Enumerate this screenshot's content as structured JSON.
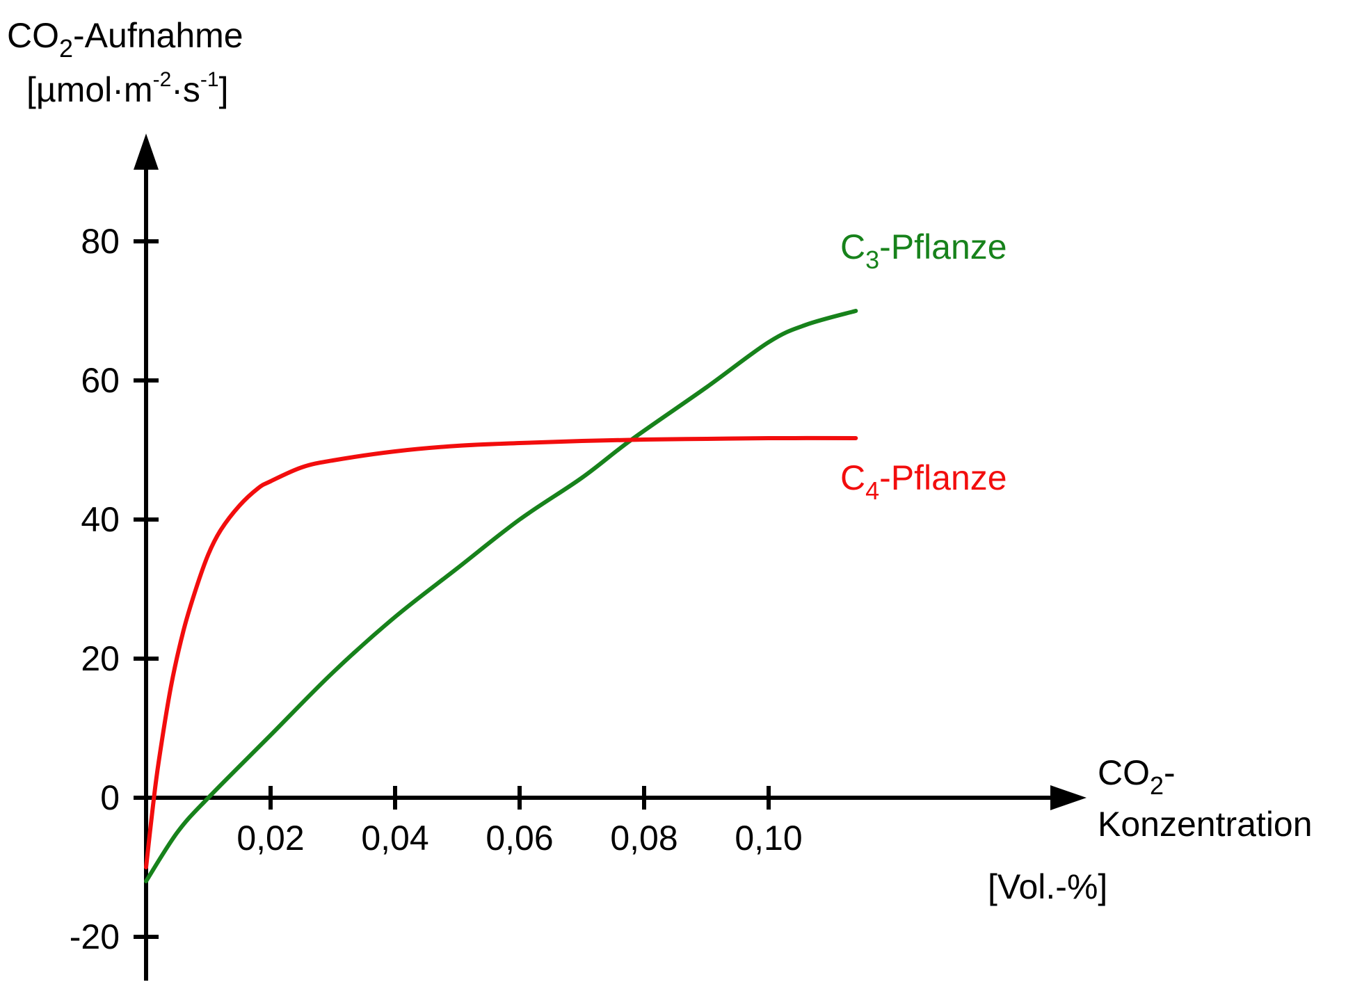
{
  "chart_data": {
    "type": "line",
    "ylabel_line1_main": "CO",
    "ylabel_line1_sub": "2",
    "ylabel_line1_rest": "-Aufnahme",
    "ylabel_line2_a": "[µmol·m",
    "ylabel_line2_sup1": "-2",
    "ylabel_line2_b": "·s",
    "ylabel_line2_sup2": "-1",
    "ylabel_line2_c": "]",
    "xlabel_line1_main": "CO",
    "xlabel_line1_sub": "2",
    "xlabel_line1_rest": "-",
    "xlabel_line2": "Konzentration",
    "xlabel_unit": "[Vol.-%]",
    "xlim": [
      0,
      0.115
    ],
    "ylim": [
      -25,
      88
    ],
    "x_ticks": [
      {
        "value": 0.02,
        "label": "0,02"
      },
      {
        "value": 0.04,
        "label": "0,04"
      },
      {
        "value": 0.06,
        "label": "0,06"
      },
      {
        "value": 0.08,
        "label": "0,08"
      },
      {
        "value": 0.1,
        "label": "0,10"
      }
    ],
    "y_ticks": [
      {
        "value": -20,
        "label": "-20"
      },
      {
        "value": 0,
        "label": "0"
      },
      {
        "value": 20,
        "label": "20"
      },
      {
        "value": 40,
        "label": "40"
      },
      {
        "value": 60,
        "label": "60"
      },
      {
        "value": 80,
        "label": "80"
      }
    ],
    "series": [
      {
        "name_main": "C",
        "name_sub": "3",
        "name_rest": "-Pflanze",
        "color": "#17821b",
        "x": [
          0,
          0.005,
          0.01,
          0.02,
          0.03,
          0.04,
          0.05,
          0.06,
          0.07,
          0.078,
          0.09,
          0.1,
          0.106,
          0.114
        ],
        "y": [
          -12,
          -5,
          0,
          9,
          18,
          26,
          33,
          40,
          46,
          51.5,
          59,
          65.5,
          68,
          70
        ]
      },
      {
        "name_main": "C",
        "name_sub": "4",
        "name_rest": "-Pflanze",
        "color": "#f20d0d",
        "x": [
          0,
          0.001,
          0.002,
          0.004,
          0.006,
          0.008,
          0.01,
          0.012,
          0.015,
          0.018,
          0.02,
          0.025,
          0.03,
          0.04,
          0.05,
          0.06,
          0.07,
          0.08,
          0.09,
          0.1,
          0.114
        ],
        "y": [
          -10,
          -2,
          5,
          16,
          24,
          30,
          35,
          38.5,
          42,
          44.5,
          45.5,
          47.5,
          48.5,
          49.8,
          50.6,
          51,
          51.3,
          51.5,
          51.6,
          51.7,
          51.7
        ]
      }
    ]
  }
}
